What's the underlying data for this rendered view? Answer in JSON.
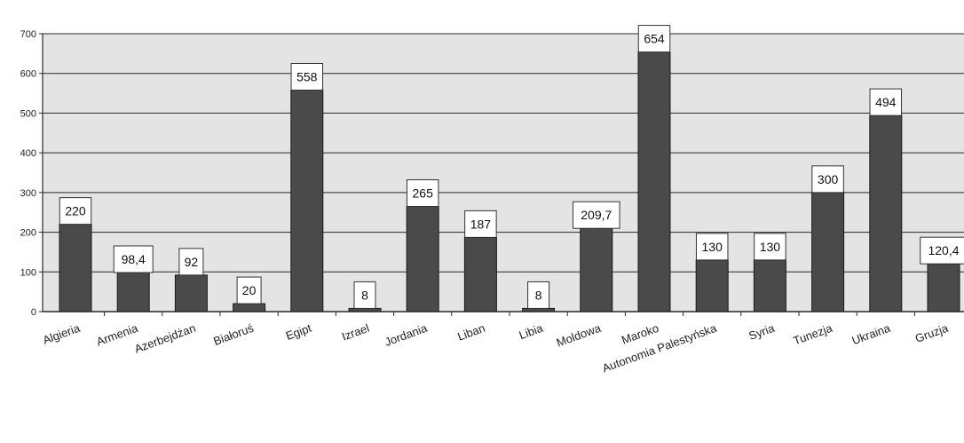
{
  "chart_data": {
    "type": "bar",
    "title": "",
    "xlabel": "",
    "ylabel": "",
    "categories": [
      "Algieria",
      "Armenia",
      "Azerbejdżan",
      "Białoruś",
      "Egipt",
      "Izrael",
      "Jordania",
      "Liban",
      "Libia",
      "Moldowa",
      "Maroko",
      "Autonomia Palestyńska",
      "Syria",
      "Tunezja",
      "Ukraina",
      "Gruzja"
    ],
    "values": [
      220,
      98.4,
      92,
      20,
      558,
      8,
      265,
      187,
      8,
      209.7,
      654,
      130,
      130,
      300,
      494,
      120.4
    ],
    "value_labels": [
      "220",
      "98,4",
      "92",
      "20",
      "558",
      "8",
      "265",
      "187",
      "8",
      "209,7",
      "654",
      "130",
      "130",
      "300",
      "494",
      "120,4"
    ],
    "yticks": [
      "0",
      "100",
      "200",
      "300",
      "400",
      "500",
      "600",
      "700"
    ],
    "ylim": [
      0,
      700
    ],
    "grid": true,
    "legend": "none",
    "colors": {
      "bar": "#4a4a4a",
      "bar_edge": "#1a1a1a",
      "grid": "#2a2a2a",
      "plot_background": "#e4e4e4",
      "label_box": "#ffffff"
    }
  }
}
